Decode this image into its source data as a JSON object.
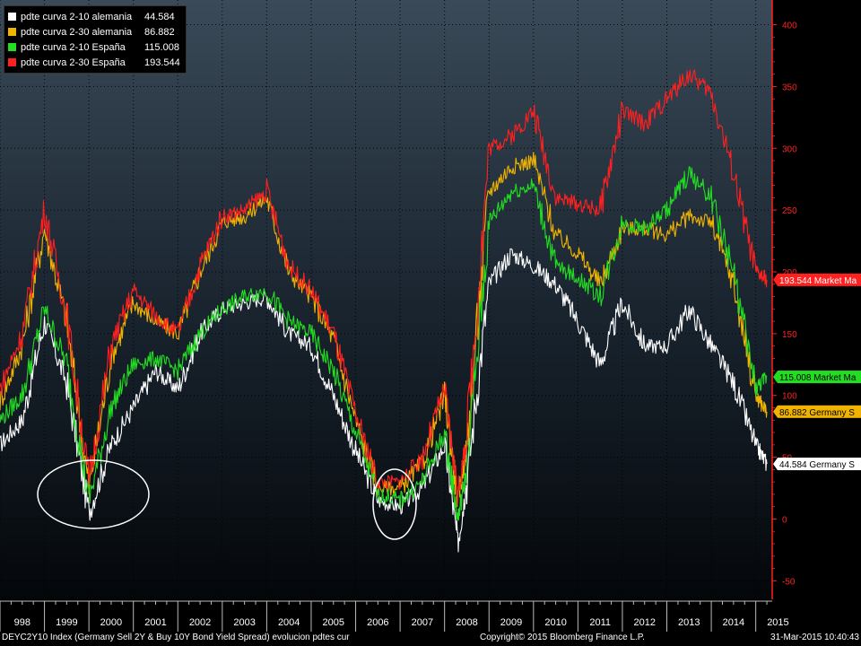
{
  "legend": [
    {
      "name": "pdte curva 2-10 alemania",
      "value": "44.584",
      "color": "#ffffff"
    },
    {
      "name": "pdte curva 2-30 alemania",
      "value": "86.882",
      "color": "#f0b400"
    },
    {
      "name": "pdte curva 2-10 España",
      "value": "115.008",
      "color": "#22dd22"
    },
    {
      "name": "pdte curva 2-30 España",
      "value": "193.544",
      "color": "#ff2020"
    }
  ],
  "value_tags": [
    {
      "text": "193.544 Market Ma",
      "value": 193.544,
      "bg": "#ff2020",
      "fg": "#ffffff"
    },
    {
      "text": "115.008 Market Ma",
      "value": 115.008,
      "bg": "#22dd22",
      "fg": "#000000"
    },
    {
      "text": "86.882  Germany S",
      "value": 86.882,
      "bg": "#f0b400",
      "fg": "#000000"
    },
    {
      "text": "44.584  Germany S",
      "value": 44.584,
      "bg": "#ffffff",
      "fg": "#000000"
    }
  ],
  "footer": {
    "left": "DEYC2Y10 Index (Germany Sell 2Y & Buy 10Y Bond Yield Spread) evolucion pdtes cur",
    "center": "Copyright© 2015 Bloomberg Finance L.P.",
    "right": "31-Mar-2015 10:40:43"
  },
  "chart_data": {
    "type": "line",
    "x_ticks": [
      "998",
      "1999",
      "2000",
      "2001",
      "2002",
      "2003",
      "2004",
      "2005",
      "2006",
      "2007",
      "2008",
      "2009",
      "2010",
      "2011",
      "2012",
      "2013",
      "2014",
      "2015"
    ],
    "y_ticks": [
      -50,
      0,
      50,
      100,
      150,
      200,
      250,
      300,
      350,
      400
    ],
    "ylim": [
      -65,
      420
    ],
    "xlim": [
      1998.0,
      2015.35
    ],
    "grid": true,
    "y_axis_side": "right",
    "legend_position": "top-left",
    "annotations": [
      "ellipse around 2000 low",
      "ellipse around 2007 low"
    ],
    "x": [
      1998.0,
      1998.5,
      1999.0,
      1999.5,
      2000.0,
      2000.5,
      2001.0,
      2001.5,
      2002.0,
      2002.5,
      2003.0,
      2003.5,
      2004.0,
      2004.5,
      2005.0,
      2005.5,
      2006.0,
      2006.5,
      2007.0,
      2007.5,
      2008.0,
      2008.3,
      2008.5,
      2009.0,
      2009.5,
      2010.0,
      2010.5,
      2011.0,
      2011.5,
      2012.0,
      2012.5,
      2013.0,
      2013.5,
      2014.0,
      2014.5,
      2015.0,
      2015.25
    ],
    "series": [
      {
        "name": "pdte curva 2-10 alemania",
        "color": "#ffffff",
        "values": [
          60,
          80,
          160,
          110,
          5,
          60,
          90,
          120,
          105,
          150,
          170,
          175,
          180,
          150,
          140,
          100,
          55,
          15,
          10,
          25,
          60,
          -20,
          30,
          190,
          215,
          205,
          190,
          160,
          125,
          175,
          140,
          140,
          170,
          140,
          110,
          60,
          44.584
        ]
      },
      {
        "name": "pdte curva 2-30 alemania",
        "color": "#f0b400",
        "values": [
          95,
          140,
          235,
          160,
          25,
          130,
          175,
          160,
          150,
          200,
          240,
          245,
          260,
          200,
          180,
          145,
          80,
          25,
          25,
          45,
          100,
          15,
          60,
          265,
          285,
          290,
          230,
          215,
          190,
          235,
          235,
          230,
          245,
          240,
          190,
          100,
          86.882
        ]
      },
      {
        "name": "pdte curva 2-10 España",
        "color": "#22dd22",
        "values": [
          80,
          100,
          170,
          125,
          15,
          90,
          125,
          130,
          120,
          150,
          170,
          180,
          185,
          160,
          150,
          120,
          70,
          20,
          15,
          30,
          70,
          0,
          40,
          240,
          265,
          270,
          205,
          195,
          180,
          240,
          235,
          250,
          280,
          260,
          200,
          105,
          115.008
        ]
      },
      {
        "name": "pdte curva 2-30 España",
        "color": "#ff2020",
        "values": [
          105,
          150,
          250,
          165,
          30,
          140,
          185,
          165,
          150,
          205,
          245,
          250,
          265,
          205,
          185,
          150,
          85,
          30,
          30,
          50,
          105,
          20,
          65,
          300,
          310,
          330,
          260,
          255,
          250,
          330,
          320,
          340,
          360,
          345,
          280,
          200,
          193.544
        ]
      }
    ]
  }
}
